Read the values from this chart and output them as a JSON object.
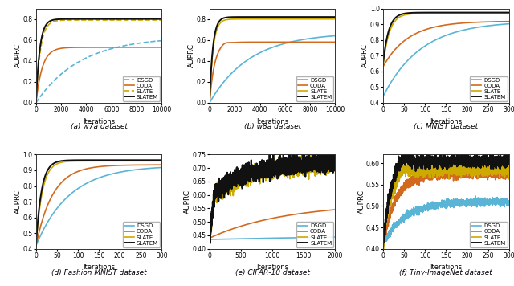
{
  "plots": [
    {
      "title": "(a) w7a dataset",
      "xlabel": "Iterations",
      "ylabel": "AUPRC",
      "xlim": [
        0,
        10000
      ],
      "ylim": [
        0,
        0.9
      ],
      "xticks": [
        0,
        2000,
        4000,
        6000,
        8000,
        10000
      ],
      "curves": {
        "DSGD": {
          "style": "--",
          "color": "#5ab4d6",
          "lw": 1.2
        },
        "CODA": {
          "style": "-",
          "color": "#d2691e",
          "lw": 1.2
        },
        "SLATE": {
          "style": "--",
          "color": "#ccaa00",
          "lw": 1.2
        },
        "SLATEM": {
          "style": "-",
          "color": "#111111",
          "lw": 1.4
        }
      }
    },
    {
      "title": "(b) w8a dataset",
      "xlabel": "Iterations",
      "ylabel": "AUPRC",
      "xlim": [
        0,
        10000
      ],
      "ylim": [
        0,
        0.9
      ],
      "xticks": [
        0,
        2000,
        4000,
        6000,
        8000,
        10000
      ],
      "curves": {
        "DSGD": {
          "style": "-",
          "color": "#5ab4d6",
          "lw": 1.2
        },
        "CODA": {
          "style": "-",
          "color": "#d2691e",
          "lw": 1.2
        },
        "SLATE": {
          "style": "-",
          "color": "#ccaa00",
          "lw": 1.2
        },
        "SLATEM": {
          "style": "-",
          "color": "#111111",
          "lw": 1.4
        }
      }
    },
    {
      "title": "(c) MNIST dataset",
      "xlabel": "Iterations",
      "ylabel": "AUPRC",
      "xlim": [
        0,
        300
      ],
      "ylim": [
        0.4,
        1.0
      ],
      "xticks": [
        0,
        50,
        100,
        150,
        200,
        250,
        300
      ],
      "curves": {
        "DSGD": {
          "style": "-",
          "color": "#5ab4d6",
          "lw": 1.2
        },
        "CODA": {
          "style": "-",
          "color": "#d2691e",
          "lw": 1.2
        },
        "SLATE": {
          "style": "-",
          "color": "#ccaa00",
          "lw": 1.2
        },
        "SLATEM": {
          "style": "-",
          "color": "#111111",
          "lw": 1.4
        }
      }
    },
    {
      "title": "(d) Fashion MNIST dataset",
      "xlabel": "Iterations",
      "ylabel": "AUPRC",
      "xlim": [
        0,
        300
      ],
      "ylim": [
        0.4,
        1.0
      ],
      "xticks": [
        0,
        50,
        100,
        150,
        200,
        250,
        300
      ],
      "curves": {
        "DSGD": {
          "style": "-",
          "color": "#5ab4d6",
          "lw": 1.2
        },
        "CODA": {
          "style": "-",
          "color": "#d2691e",
          "lw": 1.2
        },
        "SLATE": {
          "style": "-",
          "color": "#ccaa00",
          "lw": 1.2
        },
        "SLATEM": {
          "style": "-",
          "color": "#111111",
          "lw": 1.4
        }
      }
    },
    {
      "title": "(e) CIFAR-10 dataset",
      "xlabel": "Iterations",
      "ylabel": "AUPRC",
      "xlim": [
        0,
        2000
      ],
      "ylim": [
        0.4,
        0.75
      ],
      "xticks": [
        0,
        500,
        1000,
        1500,
        2000
      ],
      "curves": {
        "DSGD": {
          "style": "-",
          "color": "#5ab4d6",
          "lw": 1.2
        },
        "CODA": {
          "style": "-",
          "color": "#d2691e",
          "lw": 1.2
        },
        "SLATE": {
          "style": "-",
          "color": "#ccaa00",
          "lw": 1.2
        },
        "SLATEM": {
          "style": "-",
          "color": "#111111",
          "lw": 1.4
        }
      }
    },
    {
      "title": "(f) Tiny-ImageNet dataset",
      "xlabel": "Iterations",
      "ylabel": "AUPRC",
      "xlim": [
        0,
        300
      ],
      "ylim": [
        0.4,
        0.62
      ],
      "xticks": [
        0,
        50,
        100,
        150,
        200,
        250,
        300
      ],
      "curves": {
        "DSGD": {
          "style": "-",
          "color": "#5ab4d6",
          "lw": 1.2
        },
        "CODA": {
          "style": "-",
          "color": "#d2691e",
          "lw": 1.2
        },
        "SLATE": {
          "style": "-",
          "color": "#ccaa00",
          "lw": 1.2
        },
        "SLATEM": {
          "style": "-",
          "color": "#111111",
          "lw": 1.4
        }
      }
    }
  ],
  "fig_bg": "#ffffff",
  "axes_bg": "#ffffff",
  "curve_names": [
    "DSGD",
    "CODA",
    "SLATE",
    "SLATEM"
  ]
}
